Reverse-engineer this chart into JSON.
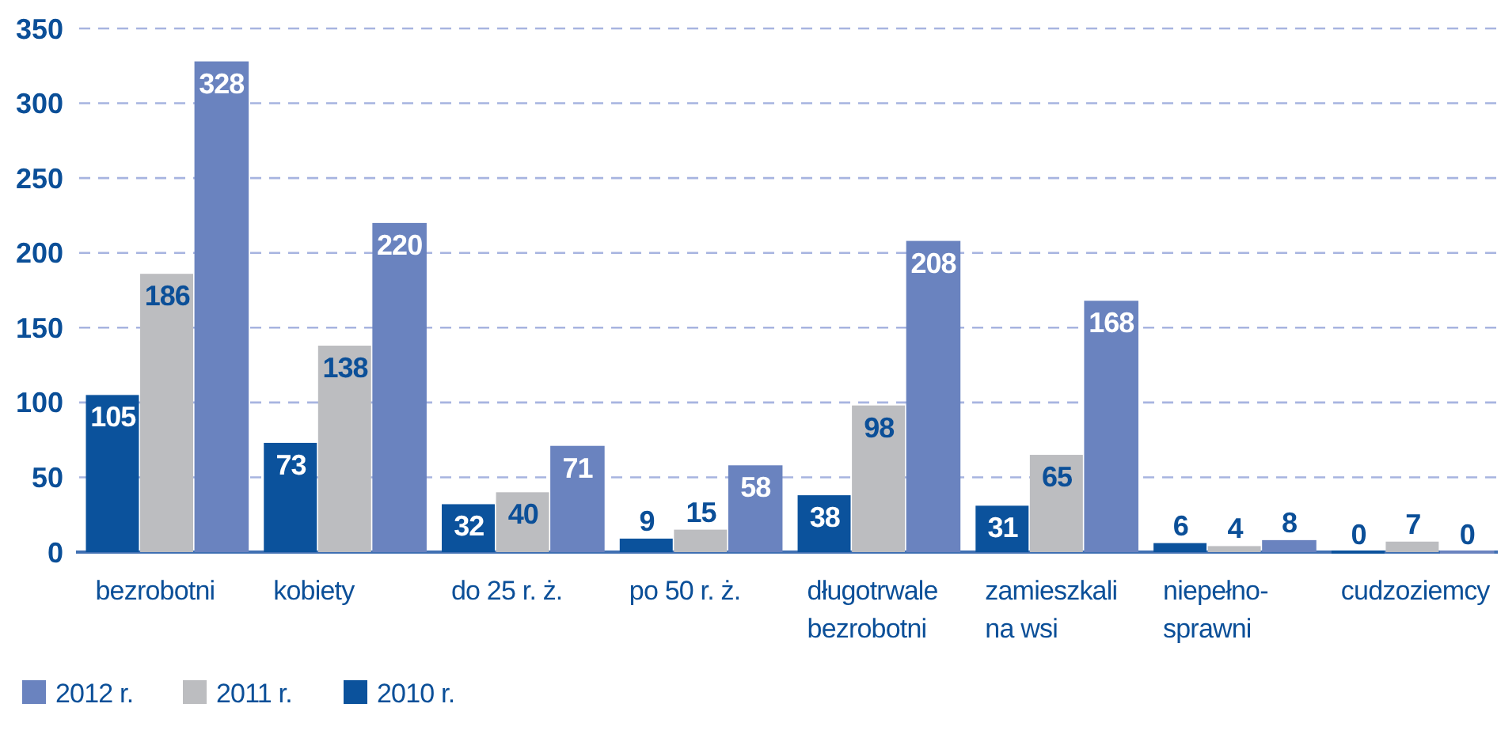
{
  "chart_data": {
    "type": "bar",
    "categories": [
      "bezrobotni",
      "kobiety",
      "do 25 r. ż.",
      "po 50 r. ż.",
      "długotrwale\nbezrobotni",
      "zamieszkali\nna wsi",
      "niepełno-\nsprawni",
      "cudzoziemcy"
    ],
    "series": [
      {
        "name": "2010 r.",
        "color": "#0b529c",
        "values": [
          105,
          73,
          32,
          9,
          38,
          31,
          6,
          0
        ]
      },
      {
        "name": "2011 r.",
        "color": "#bcbdc0",
        "values": [
          186,
          138,
          40,
          15,
          98,
          65,
          4,
          7
        ]
      },
      {
        "name": "2012 r.",
        "color": "#6a83bf",
        "values": [
          328,
          220,
          71,
          58,
          208,
          168,
          8,
          0
        ]
      }
    ],
    "ylim": [
      0,
      350
    ],
    "yticks": [
      0,
      50,
      100,
      150,
      200,
      250,
      300,
      350
    ],
    "grid": "y",
    "data_labels": true,
    "legend": "bottom left"
  }
}
